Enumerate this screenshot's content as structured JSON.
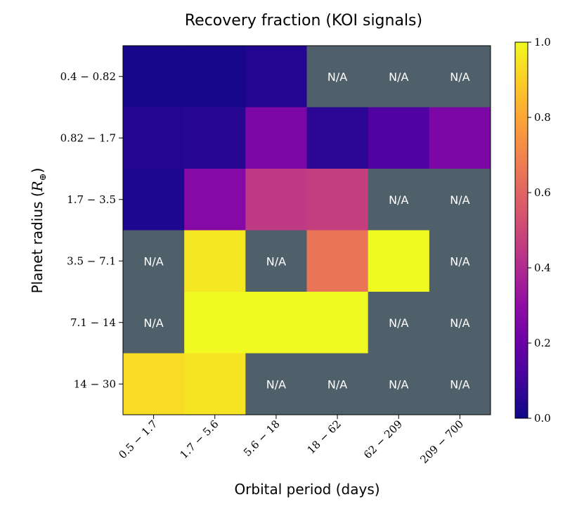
{
  "chart_data": {
    "type": "heatmap",
    "title": "Recovery fraction (KOI signals)",
    "xlabel": "Orbital period (days)",
    "ylabel": "Planet radius (R⊕)",
    "ylabel_main": "Planet radius (",
    "ylabel_symbol": "R",
    "ylabel_subscript": "⊕",
    "ylabel_close": ")",
    "x_categories": [
      "0.5 − 1.7",
      "1.7 − 5.6",
      "5.6 − 18",
      "18 − 62",
      "62 − 209",
      "209 − 700"
    ],
    "y_categories": [
      "0.4 − 0.82",
      "0.82 − 1.7",
      "1.7 − 3.5",
      "3.5 − 7.1",
      "7.1 − 14",
      "14 − 30"
    ],
    "values": [
      [
        0.02,
        0.02,
        0.04,
        null,
        null,
        null
      ],
      [
        0.04,
        0.05,
        0.25,
        0.06,
        0.14,
        0.25
      ],
      [
        0.03,
        0.27,
        0.45,
        0.47,
        null,
        null
      ],
      [
        null,
        0.96,
        null,
        0.65,
        1.0,
        null
      ],
      [
        null,
        1.0,
        1.0,
        1.0,
        null,
        null
      ],
      [
        null,
        0.95,
        null,
        null,
        null,
        null
      ]
    ],
    "cells_override": [
      {
        "row": 5,
        "col": 0,
        "value": 0.93
      }
    ],
    "missing_label": "N/A",
    "missing_color": "#50606b",
    "colorbar": {
      "range": [
        0.0,
        1.0
      ],
      "ticks": [
        0.0,
        0.2,
        0.4,
        0.6,
        0.8,
        1.0
      ],
      "tick_labels": [
        "0.0",
        "0.2",
        "0.4",
        "0.6",
        "0.8",
        "1.0"
      ],
      "colormap": "plasma"
    }
  }
}
